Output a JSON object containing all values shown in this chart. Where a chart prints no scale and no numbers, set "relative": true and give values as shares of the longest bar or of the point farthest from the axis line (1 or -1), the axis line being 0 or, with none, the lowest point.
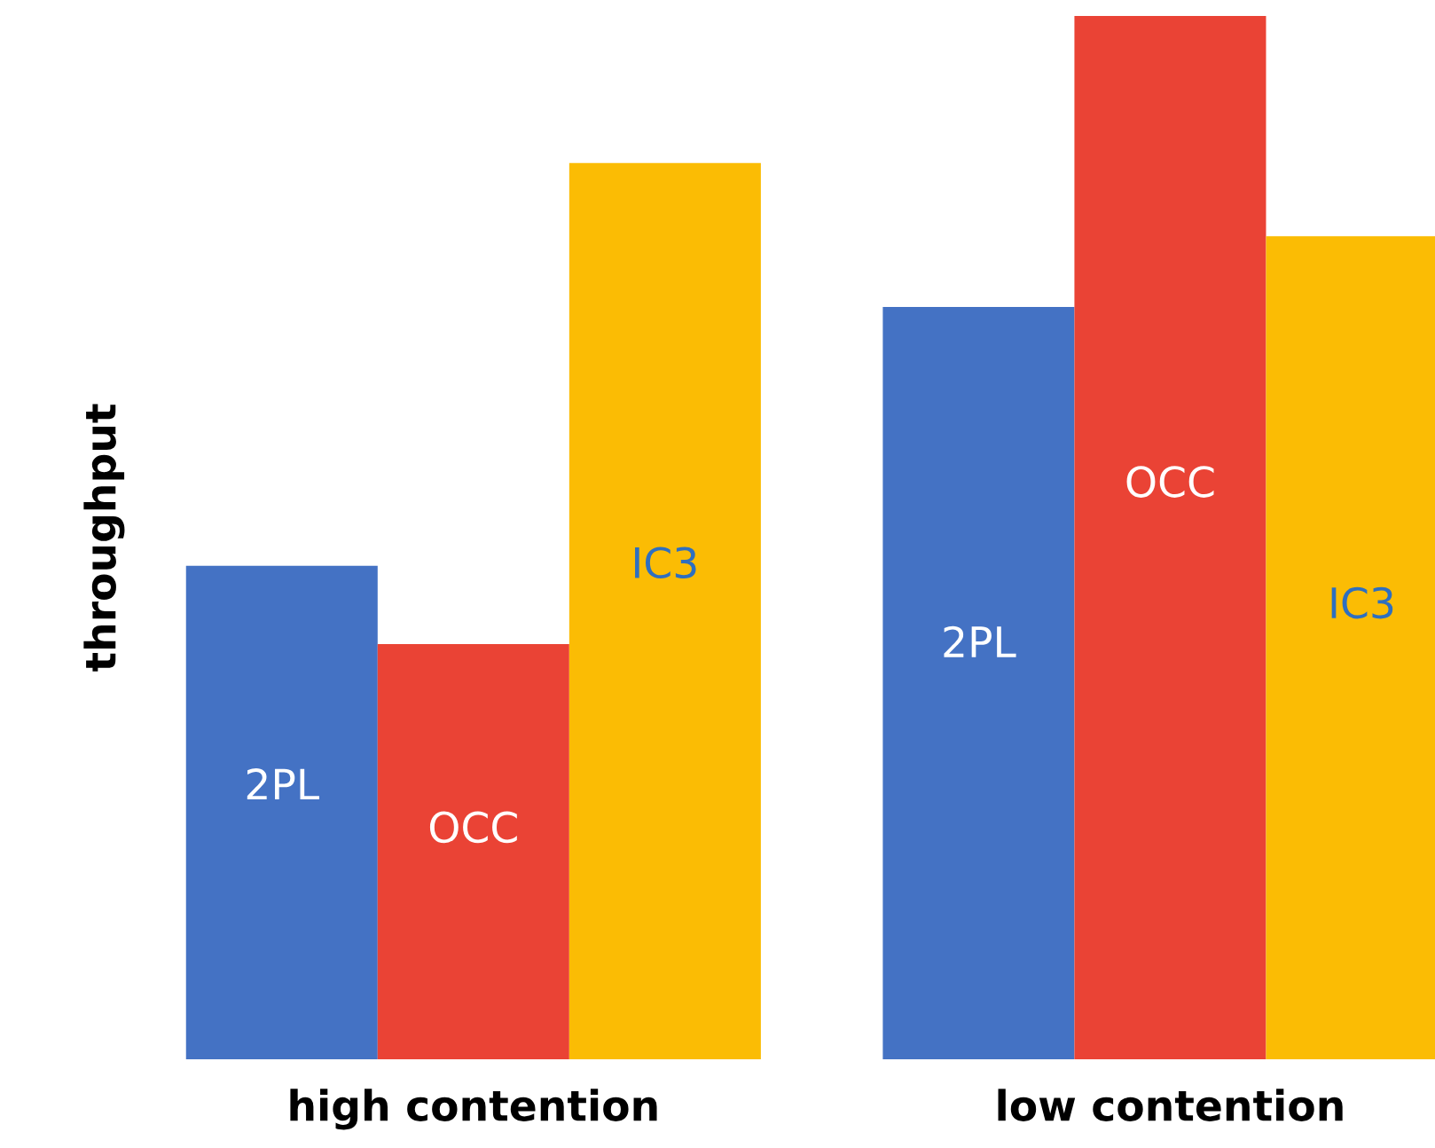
{
  "chart_data": {
    "type": "bar",
    "relative": true,
    "ylabel": "throughput",
    "categories": [
      "high contention",
      "low contention"
    ],
    "series": [
      {
        "name": "2PL",
        "color": "#4472c4",
        "values": [
          0.473,
          0.721
        ]
      },
      {
        "name": "OCC",
        "color": "#ea4335",
        "values": [
          0.398,
          1.0
        ]
      },
      {
        "name": "IC3",
        "color": "#fbbc04",
        "values": [
          0.859,
          0.789
        ]
      }
    ],
    "grid": false,
    "legend": false
  }
}
